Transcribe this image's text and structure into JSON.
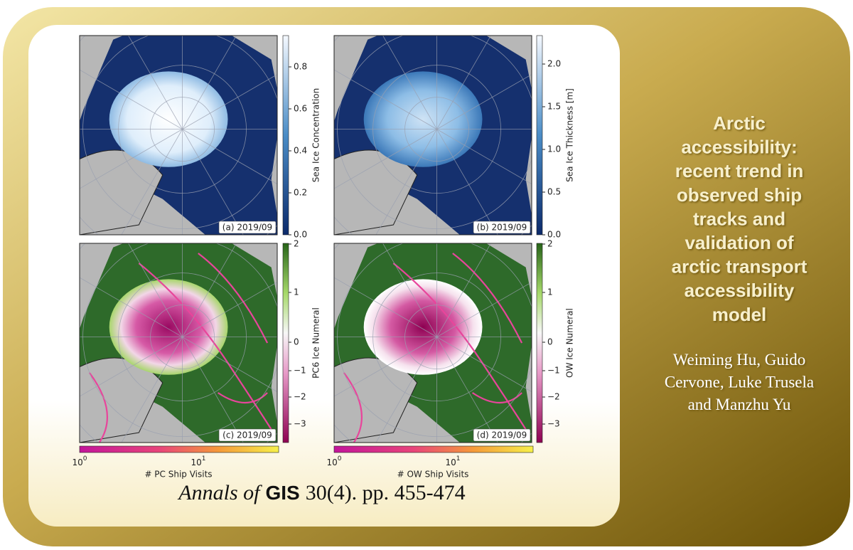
{
  "panels": [
    {
      "label": "(a) 2019/09",
      "colorbar_label": "Sea Ice Concentration",
      "ticks": [
        "0.0",
        "0.2",
        "0.4",
        "0.6",
        "0.8"
      ]
    },
    {
      "label": "(b) 2019/09",
      "colorbar_label": "Sea Ice Thickness [m]",
      "ticks": [
        "0.0",
        "0.5",
        "1.0",
        "1.5",
        "2.0"
      ]
    },
    {
      "label": "(c) 2019/09",
      "colorbar_label": "PC6 Ice Numeral",
      "ticks": [
        "−3",
        "−2",
        "−1",
        "0",
        "1",
        "2"
      ],
      "ship_colorbar_label": "# PC Ship Visits",
      "ship_ticks": [
        {
          "base": "10",
          "exp": "0"
        },
        {
          "base": "10",
          "exp": "1"
        }
      ]
    },
    {
      "label": "(d) 2019/09",
      "colorbar_label": "OW Ice Numeral",
      "ticks": [
        "−3",
        "−2",
        "−1",
        "0",
        "1",
        "2"
      ],
      "ship_colorbar_label": "# OW Ship Visits",
      "ship_ticks": [
        {
          "base": "10",
          "exp": "0"
        },
        {
          "base": "10",
          "exp": "1"
        }
      ]
    }
  ],
  "citation": {
    "journal": "Annals of",
    "journal_abbrev": "GIS",
    "details": "30(4). pp. 455-474"
  },
  "title_lines": [
    "Arctic",
    "accessibility:",
    "recent trend in",
    "observed ship",
    "tracks and",
    "validation of",
    "arctic transport",
    "accessibility",
    "model"
  ],
  "author_lines": [
    "Weiming Hu, Guido",
    "Cervone, Luke Trusela",
    "and Manzhu Yu"
  ]
}
